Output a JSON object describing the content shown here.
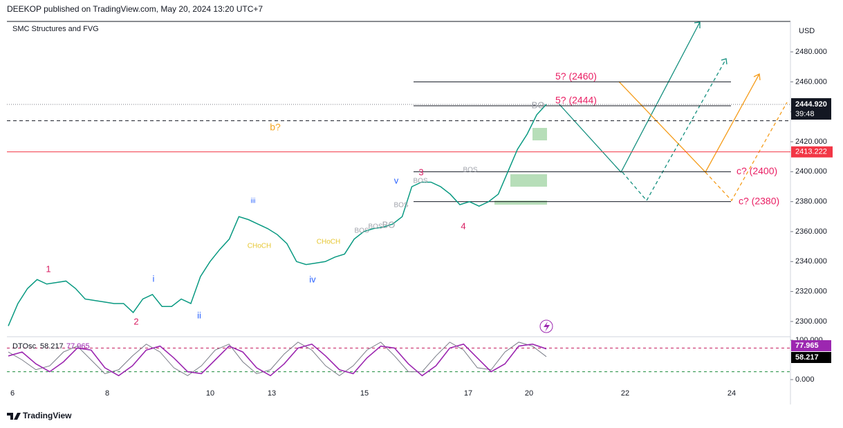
{
  "header": {
    "publisher": "DEEKOP published on TradingView.com, May 20, 2024 13:20 UTC+7",
    "indicator": "SMC Structures and FVG",
    "currency": "USD",
    "footer": "TradingView"
  },
  "chart_data": [
    {
      "type": "line",
      "color": "#089981",
      "values": [
        2297,
        2312,
        2322,
        2328,
        2325,
        2326,
        2327,
        2322,
        2315,
        2314,
        2313,
        2312,
        2312,
        2306,
        2315,
        2318,
        2310,
        2310,
        2315,
        2312,
        2330,
        2340,
        2348,
        2355,
        2370,
        2368,
        2365,
        2362,
        2358,
        2352,
        2340,
        2338,
        2339,
        2340,
        2343,
        2345,
        2355,
        2360,
        2362,
        2363,
        2365,
        2370,
        2390,
        2393,
        2393,
        2390,
        2385,
        2378,
        2380,
        2377,
        2380,
        2385,
        2400,
        2415,
        2425,
        2438,
        2445
      ],
      "ylim": [
        2291.2,
        2500
      ],
      "yticks": [
        {
          "value": 2300,
          "label": "2300.000"
        },
        {
          "value": 2320,
          "label": "2320.000"
        },
        {
          "value": 2340,
          "label": "2340.000"
        },
        {
          "value": 2360,
          "label": "2360.000"
        },
        {
          "value": 2380,
          "label": "2380.000"
        },
        {
          "value": 2400,
          "label": "2400.000"
        },
        {
          "value": 2420,
          "label": "2420.000"
        },
        {
          "value": 2440,
          "label": "2440.000"
        },
        {
          "value": 2460,
          "label": "2460.000"
        },
        {
          "value": 2480,
          "label": "2480.000"
        }
      ],
      "x_labels": [
        "6",
        "8",
        "10",
        "13",
        "15",
        "17",
        "20",
        "22",
        "24"
      ],
      "last_price": {
        "value": 2444.92,
        "label": "2444.920"
      },
      "countdown": "39:48",
      "red_line": 2413.222,
      "levels": [
        {
          "value": 2460,
          "label": "5? (2460)",
          "color": "#e91e63"
        },
        {
          "value": 2444,
          "label": "5? (2444)",
          "color": "#e91e63"
        },
        {
          "value": 2400,
          "label": "c? (2400)",
          "color": "#e91e63"
        },
        {
          "value": 2380,
          "label": "c? (2380)",
          "color": "#e91e63"
        },
        {
          "value": 2434,
          "label": "b?",
          "color": "#f5a623"
        }
      ],
      "annotations": [
        {
          "text": "1",
          "color": "#d81b60"
        },
        {
          "text": "2",
          "color": "#d81b60"
        },
        {
          "text": "i",
          "color": "#2962ff"
        },
        {
          "text": "ii",
          "color": "#2962ff"
        },
        {
          "text": "iii",
          "color": "#2962ff"
        },
        {
          "text": "iv",
          "color": "#2962ff"
        },
        {
          "text": "v",
          "color": "#2962ff"
        },
        {
          "text": "3",
          "color": "#d81b60"
        },
        {
          "text": "4",
          "color": "#d81b60"
        },
        {
          "text": "CHoCH",
          "color": "#e6c630"
        },
        {
          "text": "CHoCH",
          "color": "#e6c630"
        },
        {
          "text": "BOS",
          "color": "#a0a3ab"
        },
        {
          "text": "BOS",
          "color": "#a0a3ab"
        },
        {
          "text": "BOS",
          "color": "#a0a3ab"
        },
        {
          "text": "BOS",
          "color": "#a0a3ab"
        },
        {
          "text": "BOS",
          "color": "#a0a3ab"
        },
        {
          "text": "BO",
          "color": "#a0a3ab"
        },
        {
          "text": "BO",
          "color": "#a0a3ab"
        }
      ]
    },
    {
      "type": "line",
      "title": "DTOsc",
      "series": [
        {
          "color": "#787b86",
          "values": [
            70,
            50,
            25,
            35,
            70,
            85,
            50,
            15,
            25,
            60,
            90,
            70,
            30,
            10,
            35,
            75,
            90,
            45,
            15,
            25,
            65,
            95,
            75,
            35,
            10,
            35,
            75,
            95,
            60,
            20,
            20,
            60,
            95,
            75,
            30,
            25,
            70,
            95,
            85,
            58.217
          ]
        },
        {
          "color": "#9c27b0",
          "values": [
            60,
            70,
            40,
            20,
            45,
            80,
            75,
            30,
            10,
            35,
            75,
            85,
            55,
            20,
            15,
            50,
            85,
            70,
            30,
            10,
            40,
            80,
            90,
            60,
            25,
            15,
            55,
            85,
            80,
            40,
            10,
            35,
            80,
            90,
            55,
            20,
            40,
            85,
            90,
            77.965
          ]
        }
      ],
      "ylim": [
        0,
        100
      ],
      "yticks": [
        {
          "value": 0,
          "label": "0.000"
        },
        {
          "value": 100,
          "label": "100.000"
        }
      ],
      "levels": [
        {
          "value": 80,
          "color": "#c2185b"
        },
        {
          "value": 20,
          "color": "#1b8a3a"
        }
      ]
    }
  ]
}
